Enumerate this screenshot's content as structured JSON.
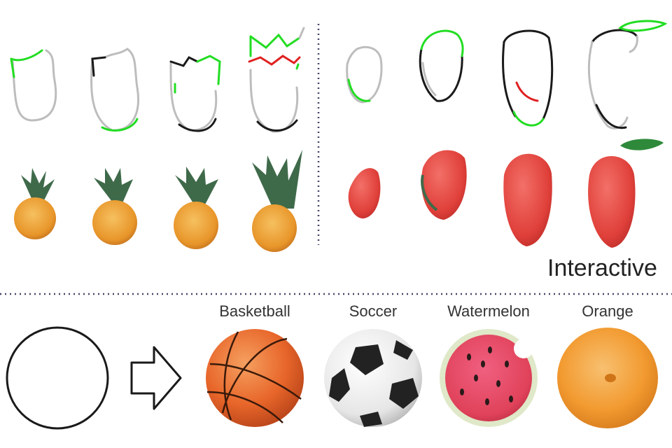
{
  "labels": {
    "interactive": "Interactive",
    "categories": [
      "Basketball",
      "Soccer",
      "Watermelon",
      "Orange"
    ]
  },
  "colors": {
    "sketch_gray": "#bdbdbd",
    "sketch_black": "#1a1a1a",
    "added_stroke_green": "#22dd22",
    "removed_stroke_red": "#e02020",
    "divider": "#444466",
    "pineapple_orange": "#e8962a",
    "pineapple_leaf": "#3f6a4a",
    "strawberry_red": "#e0403a",
    "basketball": "#e8662a",
    "watermelon": "#e0425a",
    "orange": "#f29a30"
  },
  "icons": {
    "arrow": "arrow-right-icon"
  }
}
